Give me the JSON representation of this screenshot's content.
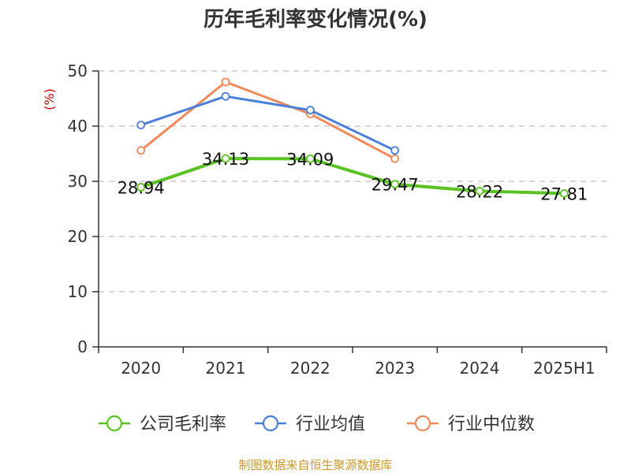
{
  "chart_data": {
    "type": "line",
    "title": "历年毛利率变化情况(%)",
    "ylabel": "(%)",
    "ylabel_color": "#cc0000",
    "categories": [
      "2020",
      "2021",
      "2022",
      "2023",
      "2024",
      "2025H1"
    ],
    "ylim": [
      0,
      50
    ],
    "yticks": [
      0,
      10,
      20,
      30,
      40,
      50
    ],
    "grid": true,
    "legend_position": "bottom",
    "series": [
      {
        "name": "公司毛利率",
        "color": "#5bc223",
        "values": [
          28.94,
          34.13,
          34.09,
          29.47,
          28.22,
          27.81
        ],
        "labels": [
          "28.94",
          "34.13",
          "34.09",
          "29.47",
          "28.22",
          "27.81"
        ]
      },
      {
        "name": "行业均值",
        "color": "#4a7fd9",
        "values": [
          40.2,
          45.4,
          42.9,
          35.6,
          null,
          null
        ]
      },
      {
        "name": "行业中位数",
        "color": "#f08a5a",
        "values": [
          35.6,
          48.0,
          42.2,
          34.1,
          null,
          null
        ]
      }
    ]
  },
  "source": {
    "text": "制图数据来自恒生聚源数据库",
    "color": "#c8982a"
  }
}
